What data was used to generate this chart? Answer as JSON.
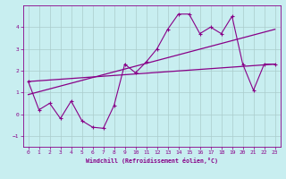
{
  "xlabel": "Windchill (Refroidissement éolien,°C)",
  "ylabel": "",
  "bg_color": "#c8eef0",
  "line_color": "#880088",
  "grid_color": "#aacccc",
  "xlim": [
    -0.5,
    23.5
  ],
  "ylim": [
    -1.5,
    5.0
  ],
  "xticks": [
    0,
    1,
    2,
    3,
    4,
    5,
    6,
    7,
    8,
    9,
    10,
    11,
    12,
    13,
    14,
    15,
    16,
    17,
    18,
    19,
    20,
    21,
    22,
    23
  ],
  "yticks": [
    -1,
    0,
    1,
    2,
    3,
    4
  ],
  "data_x": [
    0,
    1,
    2,
    3,
    4,
    5,
    6,
    7,
    8,
    9,
    10,
    11,
    12,
    13,
    14,
    15,
    16,
    17,
    18,
    19,
    20,
    21,
    22,
    23
  ],
  "data_y": [
    1.5,
    0.2,
    0.5,
    -0.2,
    0.6,
    -0.3,
    -0.6,
    -0.65,
    0.4,
    2.3,
    1.9,
    2.4,
    3.0,
    3.9,
    4.6,
    4.6,
    3.7,
    4.0,
    3.7,
    4.5,
    2.3,
    1.1,
    2.3,
    2.3
  ],
  "trend1_x": [
    0,
    23
  ],
  "trend1_y": [
    1.5,
    2.3
  ],
  "trend2_x": [
    0,
    23
  ],
  "trend2_y": [
    0.9,
    3.9
  ]
}
